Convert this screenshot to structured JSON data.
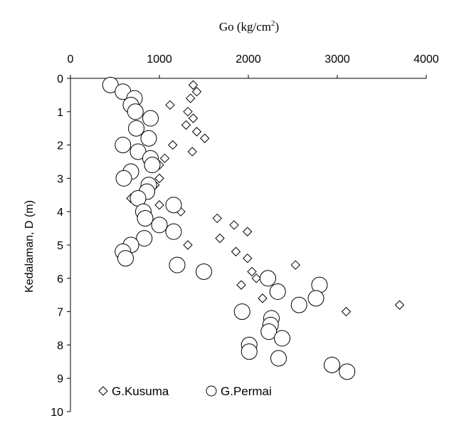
{
  "chart_data": {
    "type": "scatter",
    "title": "",
    "xlabel": "Go  (kg/cm",
    "xlabel_sup": "2",
    "xlabel_close": ")",
    "ylabel": "Kedalaman, D (m)",
    "xlim": [
      0,
      4000
    ],
    "ylim": [
      0,
      10
    ],
    "y_inverted": true,
    "x_axis_position": "top",
    "x_ticks": [
      0,
      1000,
      2000,
      3000,
      4000
    ],
    "y_ticks": [
      0,
      1,
      2,
      3,
      4,
      5,
      6,
      7,
      8,
      9,
      10
    ],
    "grid": false,
    "legend_position": "bottom-left",
    "series": [
      {
        "name": "G.Kusuma",
        "marker": "diamond",
        "points": [
          {
            "x": 1380,
            "y": 0.2
          },
          {
            "x": 1420,
            "y": 0.4
          },
          {
            "x": 1350,
            "y": 0.6
          },
          {
            "x": 1120,
            "y": 0.8
          },
          {
            "x": 1320,
            "y": 1.0
          },
          {
            "x": 1380,
            "y": 1.2
          },
          {
            "x": 1300,
            "y": 1.4
          },
          {
            "x": 1420,
            "y": 1.6
          },
          {
            "x": 1510,
            "y": 1.8
          },
          {
            "x": 1150,
            "y": 2.0
          },
          {
            "x": 1370,
            "y": 2.2
          },
          {
            "x": 1060,
            "y": 2.4
          },
          {
            "x": 1000,
            "y": 2.6
          },
          {
            "x": 1000,
            "y": 3.0
          },
          {
            "x": 950,
            "y": 3.2
          },
          {
            "x": 680,
            "y": 3.6
          },
          {
            "x": 1000,
            "y": 3.8
          },
          {
            "x": 1240,
            "y": 4.0
          },
          {
            "x": 1650,
            "y": 4.2
          },
          {
            "x": 1840,
            "y": 4.4
          },
          {
            "x": 1990,
            "y": 4.6
          },
          {
            "x": 1680,
            "y": 4.8
          },
          {
            "x": 1320,
            "y": 5.0
          },
          {
            "x": 1860,
            "y": 5.2
          },
          {
            "x": 1990,
            "y": 5.4
          },
          {
            "x": 2530,
            "y": 5.6
          },
          {
            "x": 2040,
            "y": 5.8
          },
          {
            "x": 2090,
            "y": 6.0
          },
          {
            "x": 1920,
            "y": 6.2
          },
          {
            "x": 2160,
            "y": 6.6
          },
          {
            "x": 3700,
            "y": 6.8
          },
          {
            "x": 3100,
            "y": 7.0
          }
        ]
      },
      {
        "name": "G.Permai",
        "marker": "circle",
        "points": [
          {
            "x": 450,
            "y": 0.2
          },
          {
            "x": 590,
            "y": 0.4
          },
          {
            "x": 720,
            "y": 0.6
          },
          {
            "x": 680,
            "y": 0.8
          },
          {
            "x": 730,
            "y": 1.0
          },
          {
            "x": 900,
            "y": 1.2
          },
          {
            "x": 740,
            "y": 1.5
          },
          {
            "x": 880,
            "y": 1.8
          },
          {
            "x": 590,
            "y": 2.0
          },
          {
            "x": 760,
            "y": 2.2
          },
          {
            "x": 900,
            "y": 2.4
          },
          {
            "x": 920,
            "y": 2.6
          },
          {
            "x": 680,
            "y": 2.8
          },
          {
            "x": 600,
            "y": 3.0
          },
          {
            "x": 880,
            "y": 3.2
          },
          {
            "x": 860,
            "y": 3.4
          },
          {
            "x": 760,
            "y": 3.6
          },
          {
            "x": 1160,
            "y": 3.8
          },
          {
            "x": 820,
            "y": 4.0
          },
          {
            "x": 840,
            "y": 4.2
          },
          {
            "x": 1000,
            "y": 4.4
          },
          {
            "x": 1160,
            "y": 4.6
          },
          {
            "x": 830,
            "y": 4.8
          },
          {
            "x": 680,
            "y": 5.0
          },
          {
            "x": 590,
            "y": 5.2
          },
          {
            "x": 620,
            "y": 5.4
          },
          {
            "x": 1200,
            "y": 5.6
          },
          {
            "x": 1500,
            "y": 5.8
          },
          {
            "x": 2220,
            "y": 6.0
          },
          {
            "x": 2800,
            "y": 6.2
          },
          {
            "x": 2330,
            "y": 6.4
          },
          {
            "x": 2760,
            "y": 6.6
          },
          {
            "x": 2570,
            "y": 6.8
          },
          {
            "x": 1930,
            "y": 7.0
          },
          {
            "x": 2260,
            "y": 7.2
          },
          {
            "x": 2250,
            "y": 7.4
          },
          {
            "x": 2230,
            "y": 7.6
          },
          {
            "x": 2380,
            "y": 7.8
          },
          {
            "x": 2010,
            "y": 8.0
          },
          {
            "x": 2010,
            "y": 8.2
          },
          {
            "x": 2340,
            "y": 8.4
          },
          {
            "x": 2940,
            "y": 8.6
          },
          {
            "x": 3110,
            "y": 8.8
          }
        ]
      }
    ]
  }
}
